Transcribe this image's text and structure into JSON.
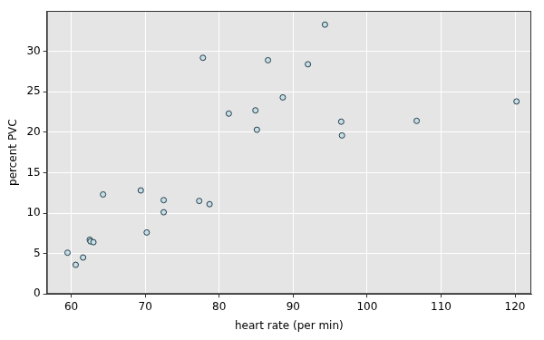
{
  "chart_data": {
    "type": "scatter",
    "x_label": "heart rate (per min)",
    "y_label": "percent PVC",
    "x": [
      59.5,
      60.6,
      61.6,
      62.5,
      62.6,
      63.0,
      64.3,
      69.4,
      70.2,
      72.5,
      72.5,
      77.3,
      77.8,
      78.7,
      81.3,
      84.9,
      85.1,
      86.6,
      88.6,
      92.0,
      94.3,
      96.5,
      96.6,
      106.7,
      120.2
    ],
    "values": [
      5.1,
      3.6,
      4.5,
      6.7,
      6.5,
      6.4,
      12.3,
      12.8,
      7.6,
      11.6,
      10.1,
      11.5,
      29.2,
      11.1,
      22.3,
      22.7,
      20.3,
      28.9,
      24.3,
      28.4,
      33.3,
      21.3,
      19.6,
      21.4,
      23.8
    ],
    "color": "#c9dfe4",
    "marker": "circle",
    "xlim": [
      56.7,
      122.2
    ],
    "xticks": [
      60,
      70,
      80,
      90,
      100,
      110,
      120
    ],
    "ylim": [
      0,
      35
    ],
    "yticks": [
      0,
      5,
      10,
      15,
      20,
      25,
      30
    ],
    "grid": true
  }
}
